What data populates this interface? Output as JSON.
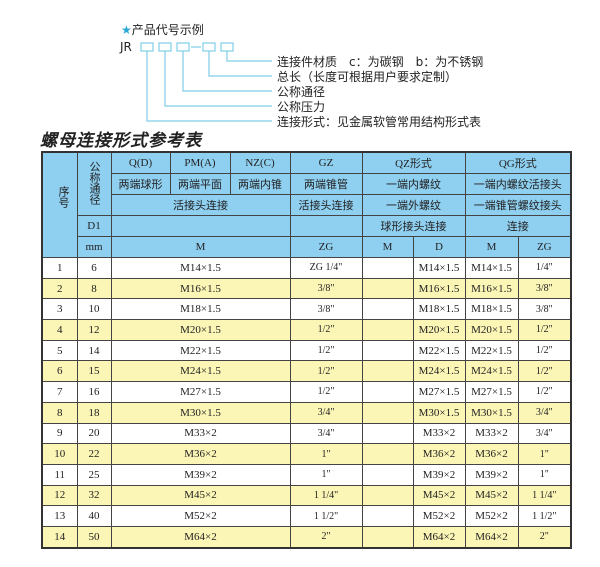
{
  "example": {
    "title": "产品代号示例",
    "star_icon": "star-icon",
    "code": "JR",
    "labels": [
      "连接件材质　c：为碳钢　b：为不锈钢",
      "总长（长度可根据用户要求定制）",
      "公称通径",
      "公称压力",
      "连接形式：见金属软管常用结构形式表"
    ]
  },
  "table_title": "螺母连接形式参考表",
  "header": {
    "seq": "序号",
    "dn": "公称通径",
    "d1": "D1",
    "mm": "mm",
    "qd": "Q(D)",
    "pma": "PM(A)",
    "nzc": "NZ(C)",
    "gz": "GZ",
    "qz": "QZ形式",
    "qg": "QG形式",
    "qd2": "两端球形",
    "pma2": "两端平面",
    "nzc2": "两端内锥",
    "gz2": "两端锥管",
    "qz2": "一端内螺纹",
    "qg2": "一端内螺纹活接头",
    "hj": "活接头连接",
    "gz3": "活接头连接",
    "qz3": "一端外螺纹",
    "qg3": "一端锥管螺纹接头",
    "qz4": "球形接头连接",
    "qg4": "连接",
    "m": "M",
    "zg": "ZG",
    "qzm": "M",
    "qzd": "D",
    "qgm": "M",
    "qgzg": "ZG"
  },
  "rows": [
    {
      "no": "1",
      "dn": "6",
      "m": "M14×1.5",
      "zg": "ZG 1/4\"",
      "d": "M14×1.5",
      "qgm": "M14×1.5",
      "qgzg": "1/4\""
    },
    {
      "no": "2",
      "dn": "8",
      "m": "M16×1.5",
      "zg": "3/8\"",
      "d": "M16×1.5",
      "qgm": "M16×1.5",
      "qgzg": "3/8\""
    },
    {
      "no": "3",
      "dn": "10",
      "m": "M18×1.5",
      "zg": "3/8\"",
      "d": "M18×1.5",
      "qgm": "M18×1.5",
      "qgzg": "3/8\""
    },
    {
      "no": "4",
      "dn": "12",
      "m": "M20×1.5",
      "zg": "1/2\"",
      "d": "M20×1.5",
      "qgm": "M20×1.5",
      "qgzg": "1/2\""
    },
    {
      "no": "5",
      "dn": "14",
      "m": "M22×1.5",
      "zg": "1/2\"",
      "d": "M22×1.5",
      "qgm": "M22×1.5",
      "qgzg": "1/2\""
    },
    {
      "no": "6",
      "dn": "15",
      "m": "M24×1.5",
      "zg": "1/2\"",
      "d": "M24×1.5",
      "qgm": "M24×1.5",
      "qgzg": "1/2\""
    },
    {
      "no": "7",
      "dn": "16",
      "m": "M27×1.5",
      "zg": "1/2\"",
      "d": "M27×1.5",
      "qgm": "M27×1.5",
      "qgzg": "1/2\""
    },
    {
      "no": "8",
      "dn": "18",
      "m": "M30×1.5",
      "zg": "3/4\"",
      "d": "M30×1.5",
      "qgm": "M30×1.5",
      "qgzg": "3/4\""
    },
    {
      "no": "9",
      "dn": "20",
      "m": "M33×2",
      "zg": "3/4\"",
      "d": "M33×2",
      "qgm": "M33×2",
      "qgzg": "3/4\""
    },
    {
      "no": "10",
      "dn": "22",
      "m": "M36×2",
      "zg": "1\"",
      "d": "M36×2",
      "qgm": "M36×2",
      "qgzg": "1\""
    },
    {
      "no": "11",
      "dn": "25",
      "m": "M39×2",
      "zg": "1\"",
      "d": "M39×2",
      "qgm": "M39×2",
      "qgzg": "1\""
    },
    {
      "no": "12",
      "dn": "32",
      "m": "M45×2",
      "zg": "1 1/4\"",
      "d": "M45×2",
      "qgm": "M45×2",
      "qgzg": "1 1/4\""
    },
    {
      "no": "13",
      "dn": "40",
      "m": "M52×2",
      "zg": "1 1/2\"",
      "d": "M52×2",
      "qgm": "M52×2",
      "qgzg": "1 1/2\""
    },
    {
      "no": "14",
      "dn": "50",
      "m": "M64×2",
      "zg": "2\"",
      "d": "M64×2",
      "qgm": "M64×2",
      "qgzg": "2\""
    }
  ],
  "colors": {
    "header": "#8fcff0",
    "alt_row": "#fbf5b6",
    "accent": "#2aa7d6"
  }
}
